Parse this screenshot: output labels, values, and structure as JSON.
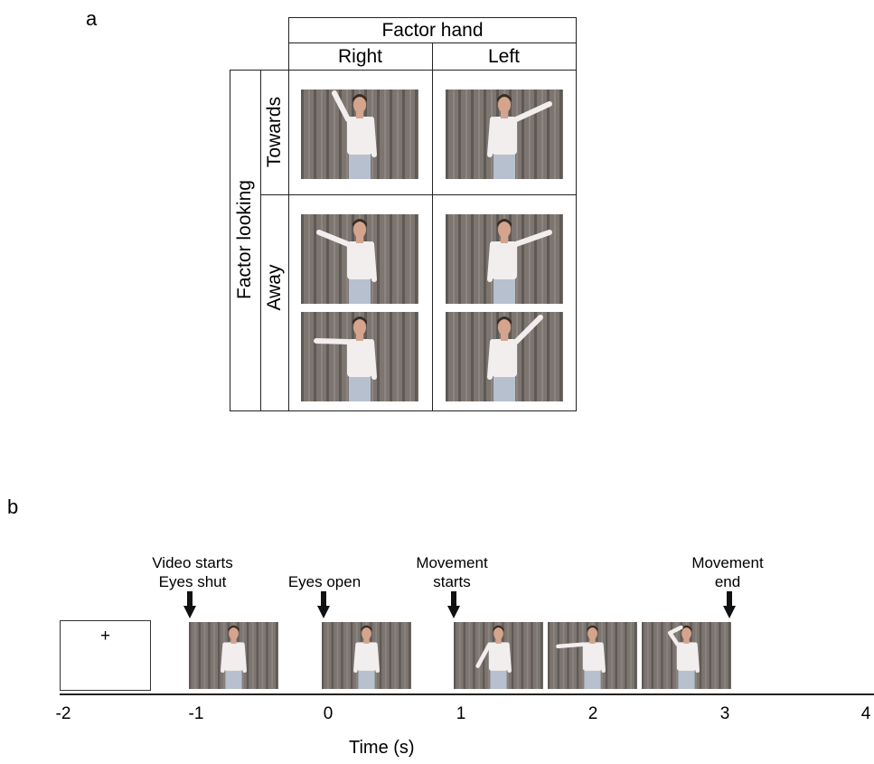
{
  "panel_a": {
    "label": "a",
    "column_factor": "Factor hand",
    "columns": [
      "Right",
      "Left"
    ],
    "row_factor": "Factor looking",
    "rows": [
      "Towards",
      "Away"
    ],
    "image_style": {
      "curtain": "#7c7570",
      "curtain_fold": "#5f5955",
      "shirt": "#f2eeee",
      "trousers": "#b7c0cf",
      "skin": "#d4a58c",
      "hair": "#3a2b22"
    }
  },
  "panel_b": {
    "label": "b",
    "fixation_symbol": "+",
    "events": [
      {
        "line1": "Video starts",
        "line2": "Eyes shut"
      },
      {
        "line1": "Eyes open",
        "line2": ""
      },
      {
        "line1": "Movement",
        "line2": "starts"
      },
      {
        "line1": "Movement",
        "line2": "end"
      }
    ],
    "timeline_ticks": [
      "-2",
      "-1",
      "0",
      "1",
      "2",
      "3",
      "4"
    ],
    "axis_label": "Time (s)"
  }
}
